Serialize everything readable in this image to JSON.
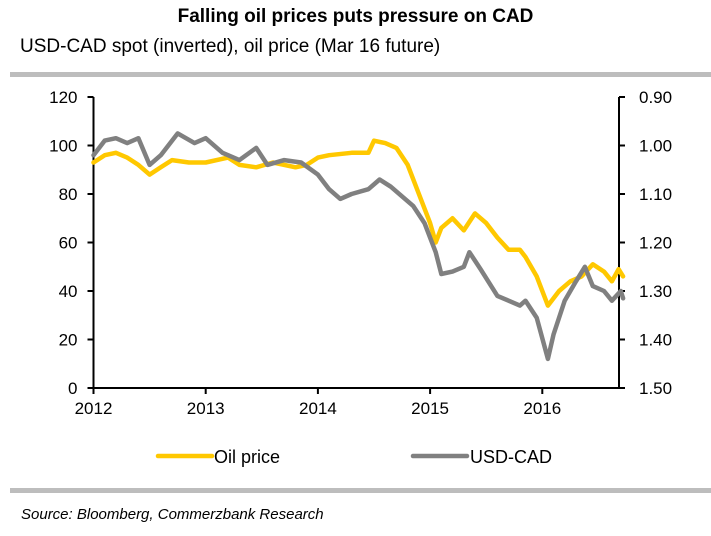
{
  "header": {
    "title": "Falling oil prices puts pressure on CAD",
    "subtitle": "USD-CAD spot (inverted), oil price (Mar 16 future)"
  },
  "footer": {
    "source": "Source: Bloomberg, Commerzbank Research"
  },
  "colors": {
    "oil": "#ffc800",
    "usdcad": "#808080",
    "rule": "#bdbdbd"
  },
  "chart_data": {
    "type": "line",
    "title": "Falling oil prices puts pressure on CAD",
    "subtitle": "USD-CAD spot (inverted), oil price (Mar 16 future)",
    "xlabel": "",
    "ylabel_left": "",
    "ylabel_right": "",
    "x_ticks": [
      "2012",
      "2013",
      "2014",
      "2015",
      "2016"
    ],
    "x_range": [
      2012.0,
      2016.7
    ],
    "y_left": {
      "ticks": [
        "0",
        "20",
        "40",
        "60",
        "80",
        "100",
        "120"
      ],
      "range": [
        0,
        120
      ]
    },
    "y_right": {
      "ticks": [
        "0.90",
        "1.00",
        "1.10",
        "1.20",
        "1.30",
        "1.40",
        "1.50"
      ],
      "range": [
        0.9,
        1.5
      ],
      "inverted": true
    },
    "grid": false,
    "legend_position": "bottom",
    "series": [
      {
        "name": "Oil price",
        "axis": "left",
        "color": "#ffc800",
        "x": [
          2012.0,
          2012.1,
          2012.2,
          2012.3,
          2012.4,
          2012.5,
          2012.6,
          2012.7,
          2012.85,
          2013.0,
          2013.2,
          2013.3,
          2013.45,
          2013.6,
          2013.8,
          2013.9,
          2014.0,
          2014.1,
          2014.3,
          2014.45,
          2014.5,
          2014.6,
          2014.7,
          2014.8,
          2014.9,
          2015.0,
          2015.05,
          2015.1,
          2015.2,
          2015.3,
          2015.4,
          2015.5,
          2015.6,
          2015.7,
          2015.8,
          2015.85,
          2015.95,
          2016.05,
          2016.15,
          2016.25,
          2016.35,
          2016.45,
          2016.55,
          2016.62,
          2016.68,
          2016.72
        ],
        "values": [
          93,
          96,
          97,
          95,
          92,
          88,
          91,
          94,
          93,
          93,
          95,
          92,
          91,
          93,
          91,
          92,
          95,
          96,
          97,
          97,
          102,
          101,
          99,
          92,
          80,
          68,
          60,
          66,
          70,
          65,
          72,
          68,
          62,
          57,
          57,
          54,
          46,
          34,
          40,
          44,
          46,
          51,
          48,
          44,
          49,
          46
        ]
      },
      {
        "name": "USD-CAD",
        "axis": "right",
        "color": "#808080",
        "x": [
          2012.0,
          2012.1,
          2012.2,
          2012.3,
          2012.4,
          2012.5,
          2012.6,
          2012.75,
          2012.9,
          2013.0,
          2013.15,
          2013.3,
          2013.45,
          2013.55,
          2013.7,
          2013.85,
          2014.0,
          2014.1,
          2014.2,
          2014.3,
          2014.45,
          2014.55,
          2014.65,
          2014.75,
          2014.85,
          2014.95,
          2015.05,
          2015.1,
          2015.2,
          2015.3,
          2015.35,
          2015.45,
          2015.6,
          2015.7,
          2015.8,
          2015.85,
          2015.95,
          2016.05,
          2016.1,
          2016.2,
          2016.3,
          2016.38,
          2016.45,
          2016.55,
          2016.62,
          2016.7,
          2016.72
        ],
        "values": [
          1.02,
          0.99,
          0.985,
          0.995,
          0.985,
          1.04,
          1.02,
          0.975,
          0.995,
          0.985,
          1.015,
          1.03,
          1.005,
          1.04,
          1.03,
          1.035,
          1.06,
          1.09,
          1.11,
          1.1,
          1.09,
          1.07,
          1.085,
          1.105,
          1.125,
          1.16,
          1.22,
          1.265,
          1.26,
          1.25,
          1.22,
          1.255,
          1.31,
          1.32,
          1.33,
          1.32,
          1.355,
          1.44,
          1.39,
          1.32,
          1.28,
          1.25,
          1.29,
          1.3,
          1.32,
          1.3,
          1.315
        ]
      }
    ]
  }
}
